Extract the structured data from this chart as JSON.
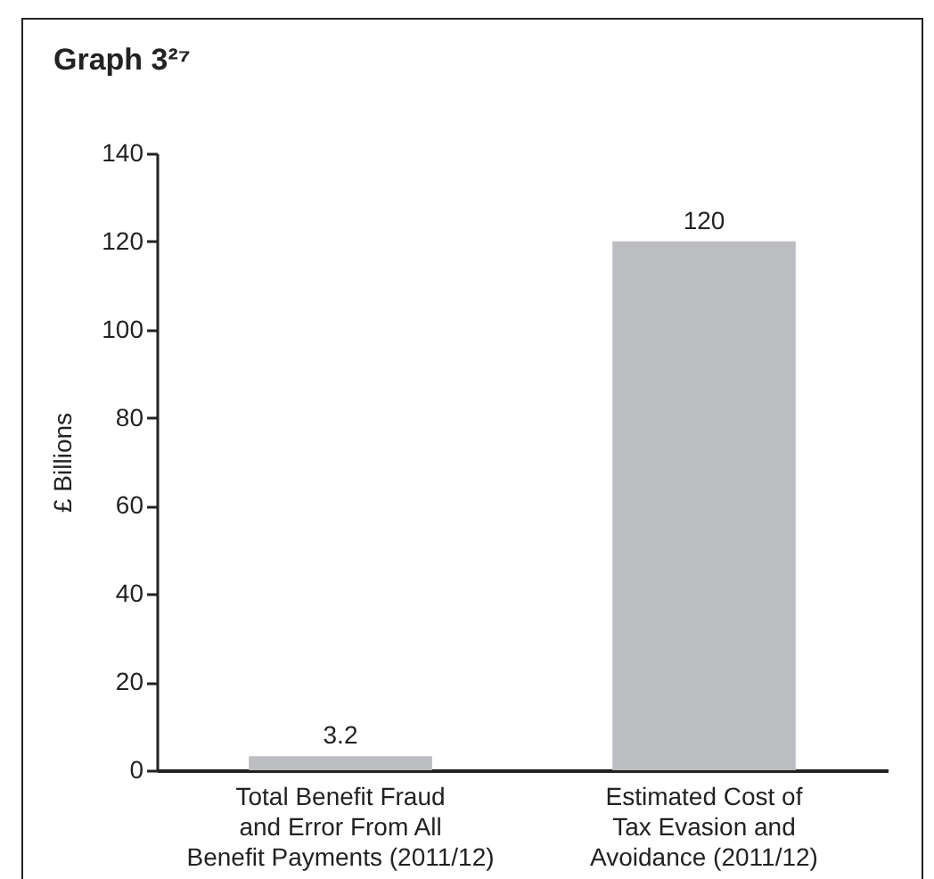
{
  "chart_data": {
    "type": "bar",
    "title": "Graph 3²⁷",
    "ylabel": "£ Billions",
    "categories": [
      "Total Benefit Fraud and Error From All Benefit Payments (2011/12)",
      "Estimated Cost of Tax Evasion and Avoidance (2011/12)"
    ],
    "values": [
      3.2,
      120
    ],
    "color": "#bcbdc0",
    "ylim": [
      0,
      140
    ],
    "yticks": [
      0,
      20,
      40,
      60,
      80,
      100,
      120,
      140
    ],
    "data_labels": true
  }
}
